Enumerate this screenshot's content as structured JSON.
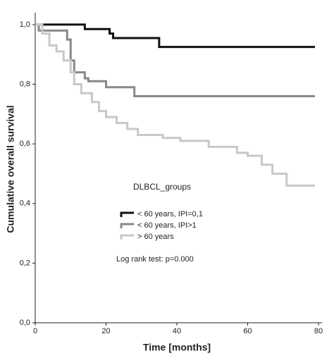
{
  "chart_data": {
    "type": "step",
    "x_label": "Time [months]",
    "y_label": "Cumulative overall survival",
    "legend_title": "DLBCL_groups",
    "annotation": "Log rank test: p=0.000",
    "xlim": [
      0,
      81
    ],
    "ylim": [
      0,
      1.04
    ],
    "xticks": [
      0,
      20,
      40,
      60,
      80
    ],
    "yticks": [
      {
        "value": 0,
        "label": "0,0"
      },
      {
        "value": 0.2,
        "label": "0,2"
      },
      {
        "value": 0.4,
        "label": "0,4"
      },
      {
        "value": 0.6,
        "label": "0,6"
      },
      {
        "value": 0.8,
        "label": "0,8"
      },
      {
        "value": 1.0,
        "label": "1,0"
      }
    ],
    "series": [
      {
        "name": "< 60 years, IPI=0,1",
        "color": "#111111",
        "x": [
          0,
          14,
          21,
          22,
          35,
          79
        ],
        "values": [
          1.0,
          0.985,
          0.97,
          0.955,
          0.925,
          0.925
        ]
      },
      {
        "name": "< 60 years, IPI>1",
        "color": "#888888",
        "x": [
          0,
          1,
          9,
          10,
          11,
          14,
          15,
          20,
          28,
          79
        ],
        "values": [
          1.0,
          0.98,
          0.95,
          0.88,
          0.84,
          0.82,
          0.81,
          0.79,
          0.76,
          0.76
        ]
      },
      {
        "name": "> 60 years",
        "color": "#c8c8c8",
        "x": [
          0,
          2,
          4,
          6,
          8,
          10,
          11,
          13,
          16,
          18,
          20,
          23,
          26,
          29,
          36,
          41,
          49,
          57,
          60,
          64,
          67,
          71,
          79
        ],
        "values": [
          1.0,
          0.97,
          0.93,
          0.91,
          0.88,
          0.84,
          0.8,
          0.77,
          0.74,
          0.71,
          0.69,
          0.67,
          0.65,
          0.63,
          0.62,
          0.61,
          0.59,
          0.57,
          0.56,
          0.53,
          0.5,
          0.46,
          0.46
        ]
      }
    ]
  }
}
